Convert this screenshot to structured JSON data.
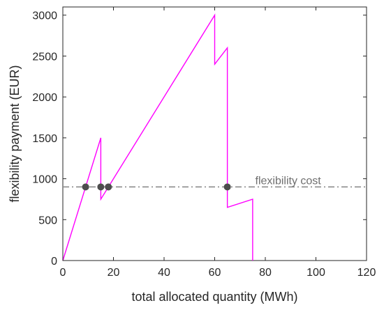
{
  "chart_data": {
    "type": "line",
    "title": "",
    "xlabel": "total allocated quantity (MWh)",
    "ylabel": "flexibility payment (EUR)",
    "xlim": [
      0,
      120
    ],
    "ylim": [
      0,
      3100
    ],
    "xticks": [
      0,
      20,
      40,
      60,
      80,
      100,
      120
    ],
    "yticks": [
      0,
      500,
      1000,
      1500,
      2000,
      2500,
      3000
    ],
    "xtick_labels": [
      "0",
      "20",
      "40",
      "60",
      "80",
      "100",
      "120"
    ],
    "ytick_labels": [
      "0",
      "500",
      "1000",
      "1500",
      "2000",
      "2500",
      "3000"
    ],
    "grid": false,
    "legend": false,
    "series": [
      {
        "style": "solid",
        "color": "#ff00ff",
        "x": [
          0,
          15,
          15,
          18,
          60,
          60,
          65,
          65,
          75,
          75
        ],
        "y": [
          0,
          1500,
          750,
          900,
          3000,
          2400,
          2600,
          650,
          750,
          0
        ]
      }
    ],
    "reference_lines": [
      {
        "style": "dash-dot",
        "color": "#8c8c8c",
        "y": 900,
        "label": "flexibility cost"
      }
    ],
    "markers": {
      "color": "#4d4d4d",
      "points": [
        {
          "x": 9,
          "y": 900
        },
        {
          "x": 15,
          "y": 900
        },
        {
          "x": 18,
          "y": 900
        },
        {
          "x": 65,
          "y": 900
        }
      ]
    }
  }
}
